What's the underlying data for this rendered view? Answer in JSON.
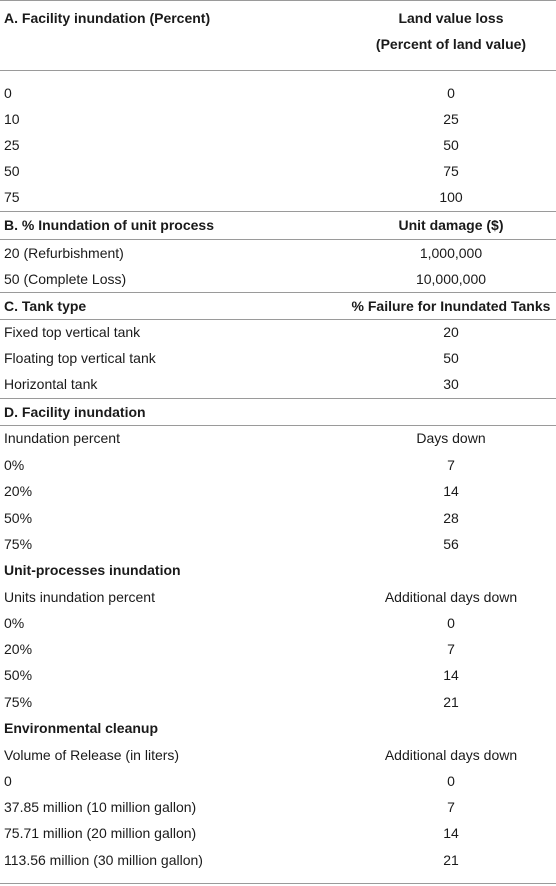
{
  "sectionA": {
    "header_left": "A. Facility inundation (Percent)",
    "header_right_line1": "Land value loss",
    "header_right_line2": "(Percent of land value)",
    "rows": [
      {
        "left": "0",
        "right": "0"
      },
      {
        "left": "10",
        "right": "25"
      },
      {
        "left": "25",
        "right": "50"
      },
      {
        "left": "50",
        "right": "75"
      },
      {
        "left": "75",
        "right": "100"
      }
    ]
  },
  "sectionB": {
    "header_left": "B. % Inundation of unit process",
    "header_right": "Unit damage ($)",
    "rows": [
      {
        "left": "20 (Refurbishment)",
        "right": "1,000,000"
      },
      {
        "left": "50 (Complete Loss)",
        "right": "10,000,000"
      }
    ]
  },
  "sectionC": {
    "header_left": "C. Tank type",
    "header_right": "% Failure for Inundated Tanks",
    "rows": [
      {
        "left": "Fixed top vertical tank",
        "right": "20"
      },
      {
        "left": "Floating top vertical tank",
        "right": "50"
      },
      {
        "left": "Horizontal tank",
        "right": "30"
      }
    ]
  },
  "sectionD": {
    "title": "D. Facility inundation",
    "sub1": {
      "col_left": "Inundation percent",
      "col_right": "Days down",
      "rows": [
        {
          "left": "0%",
          "right": "7"
        },
        {
          "left": "20%",
          "right": "14"
        },
        {
          "left": "50%",
          "right": "28"
        },
        {
          "left": "75%",
          "right": "56"
        }
      ]
    },
    "sub2": {
      "title": "Unit-processes inundation",
      "col_left": "Units inundation percent",
      "col_right": "Additional days down",
      "rows": [
        {
          "left": "0%",
          "right": "0"
        },
        {
          "left": "20%",
          "right": "7"
        },
        {
          "left": "50%",
          "right": "14"
        },
        {
          "left": "75%",
          "right": "21"
        }
      ]
    },
    "sub3": {
      "title": "Environmental cleanup",
      "col_left": "Volume of Release (in liters)",
      "col_right": "Additional days down",
      "rows": [
        {
          "left": "0",
          "right": "0"
        },
        {
          "left": "37.85 million (10 million gallon)",
          "right": "7"
        },
        {
          "left": "75.71 million (20 million gallon)",
          "right": "14"
        },
        {
          "left": "113.56 million (30 million gallon)",
          "right": "21"
        }
      ]
    }
  }
}
